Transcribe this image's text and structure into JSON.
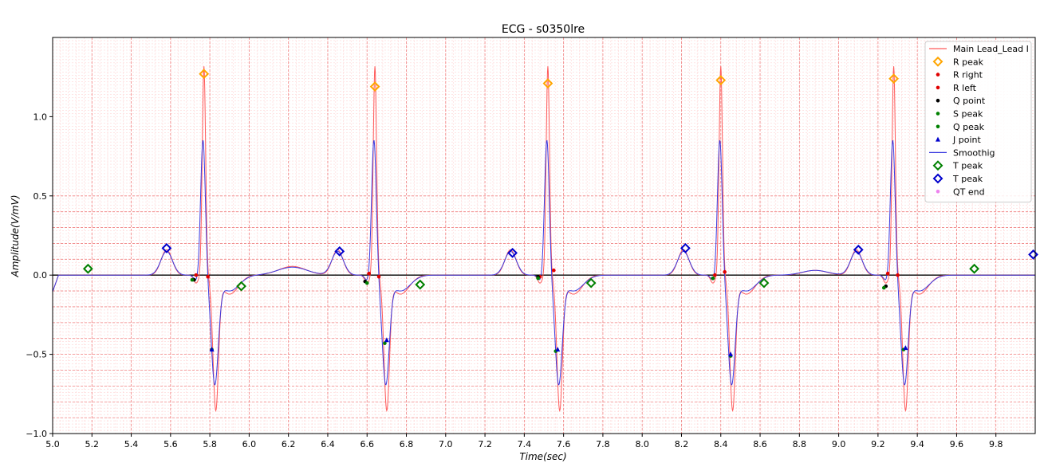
{
  "chart_data": {
    "type": "line",
    "title": "ECG - s0350lre",
    "xlabel": "Time(sec)",
    "ylabel": "Amplitude(V/mV)",
    "xlim": [
      5.0,
      10.0
    ],
    "ylim": [
      -1.0,
      1.5
    ],
    "x_ticks": [
      "5.0",
      "5.2",
      "5.4",
      "5.6",
      "5.8",
      "6.0",
      "6.2",
      "6.4",
      "6.6",
      "6.8",
      "7.0",
      "7.2",
      "7.4",
      "7.6",
      "7.8",
      "8.0",
      "8.2",
      "8.4",
      "8.6",
      "8.8",
      "9.0",
      "9.2",
      "9.4",
      "9.6",
      "9.8"
    ],
    "y_ticks": [
      "−1.0",
      "−0.5",
      "0.0",
      "0.5",
      "1.0"
    ],
    "grid": true,
    "legend_position": "top-right",
    "colors": {
      "main": "#ff5a5a",
      "smooth": "#3a3ae0",
      "r_peak": "#ffa500",
      "r_point": "#e00000",
      "q_point": "#000000",
      "s_peak": "#008000",
      "j_point": "#0000cc",
      "t_peak_green": "#008000",
      "t_peak_blue": "#0000cc",
      "qt_end": "#ee82ee"
    },
    "beats": [
      5.77,
      6.64,
      7.52,
      8.4,
      9.28
    ],
    "series": [
      {
        "name": "Main Lead_Lead I",
        "kind": "line",
        "color": "#ff5a5a"
      },
      {
        "name": "R peak",
        "kind": "diamond",
        "color": "#ffa500",
        "points": [
          [
            5.77,
            1.27
          ],
          [
            6.64,
            1.19
          ],
          [
            7.52,
            1.21
          ],
          [
            8.4,
            1.23
          ],
          [
            9.28,
            1.24
          ]
        ]
      },
      {
        "name": "R right",
        "kind": "dot",
        "color": "#e00000",
        "points": [
          [
            5.79,
            -0.01
          ],
          [
            6.66,
            -0.01
          ],
          [
            7.55,
            0.03
          ],
          [
            8.42,
            0.02
          ],
          [
            9.3,
            0.0
          ]
        ]
      },
      {
        "name": "R left",
        "kind": "dot",
        "color": "#e00000",
        "points": [
          [
            5.73,
            0.0
          ],
          [
            6.61,
            0.01
          ],
          [
            7.48,
            -0.01
          ],
          [
            8.37,
            0.0
          ],
          [
            9.25,
            0.01
          ]
        ]
      },
      {
        "name": "Q point",
        "kind": "dot",
        "color": "#000000",
        "points": [
          [
            5.72,
            -0.03
          ],
          [
            6.59,
            -0.04
          ],
          [
            7.47,
            -0.01
          ],
          [
            8.36,
            -0.02
          ],
          [
            9.24,
            -0.07
          ]
        ]
      },
      {
        "name": "S peak",
        "kind": "dot",
        "color": "#008000",
        "points": [
          [
            5.81,
            -0.47
          ],
          [
            6.69,
            -0.43
          ],
          [
            7.56,
            -0.48
          ],
          [
            8.45,
            -0.51
          ],
          [
            9.33,
            -0.47
          ]
        ]
      },
      {
        "name": "Q peak",
        "kind": "dot",
        "color": "#008000",
        "points": [
          [
            5.71,
            -0.03
          ],
          [
            6.6,
            -0.05
          ],
          [
            7.47,
            -0.02
          ],
          [
            8.36,
            -0.02
          ],
          [
            9.23,
            -0.08
          ]
        ]
      },
      {
        "name": "J point",
        "kind": "triangle",
        "color": "#0000cc",
        "points": [
          [
            5.81,
            -0.47
          ],
          [
            6.7,
            -0.41
          ],
          [
            7.57,
            -0.47
          ],
          [
            8.45,
            -0.5
          ],
          [
            9.34,
            -0.46
          ]
        ]
      },
      {
        "name": "Smoothig",
        "kind": "line",
        "color": "#3a3ae0"
      },
      {
        "name": "T peak",
        "kind": "diamond",
        "color": "#008000",
        "points": [
          [
            5.18,
            0.04
          ],
          [
            5.96,
            -0.07
          ],
          [
            6.87,
            -0.06
          ],
          [
            7.74,
            -0.05
          ],
          [
            8.62,
            -0.05
          ],
          [
            9.69,
            0.04
          ]
        ]
      },
      {
        "name": "T peak",
        "kind": "diamond",
        "color": "#0000cc",
        "points": [
          [
            5.58,
            0.17
          ],
          [
            6.46,
            0.15
          ],
          [
            7.34,
            0.14
          ],
          [
            8.22,
            0.17
          ],
          [
            9.1,
            0.16
          ],
          [
            9.99,
            0.13
          ]
        ]
      },
      {
        "name": "QT end",
        "kind": "dot",
        "color": "#ee82ee",
        "points": []
      }
    ]
  }
}
